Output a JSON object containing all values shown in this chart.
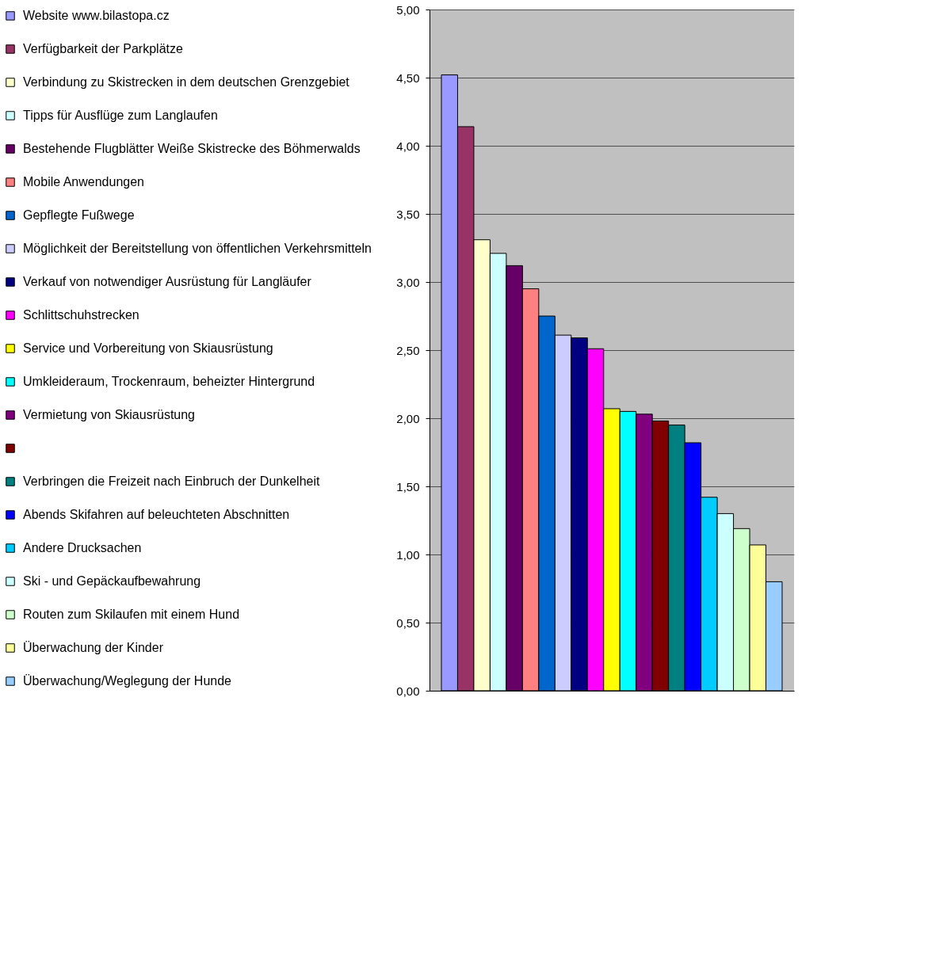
{
  "chart_data": {
    "type": "bar",
    "categories": [
      null
    ],
    "series": [
      {
        "name": "Website www.bilastopa.cz",
        "color": "#9999ff",
        "values": [
          4.52
        ]
      },
      {
        "name": "Verfügbarkeit der Parkplätze",
        "color": "#993366",
        "values": [
          4.14
        ]
      },
      {
        "name": "Verbindung zu Skistrecken in dem deutschen Grenzgebiet",
        "color": "#ffffcc",
        "values": [
          3.31
        ]
      },
      {
        "name": "Tipps für Ausflüge zum Langlaufen",
        "color": "#ccffff",
        "values": [
          3.21
        ]
      },
      {
        "name": "Bestehende Flugblätter Weiße Skistrecke des Böhmerwalds",
        "color": "#660066",
        "values": [
          3.12
        ]
      },
      {
        "name": "Mobile Anwendungen",
        "color": "#ff8080",
        "values": [
          2.95
        ]
      },
      {
        "name": "Gepflegte Fußwege",
        "color": "#0066cc",
        "values": [
          2.75
        ]
      },
      {
        "name": "Möglichkeit der Bereitstellung von öffentlichen Verkehrsmitteln",
        "color": "#ccccff",
        "values": [
          2.61
        ]
      },
      {
        "name": "Verkauf von notwendiger Ausrüstung für Langläufer",
        "color": "#000080",
        "values": [
          2.59
        ]
      },
      {
        "name": "Schlittschuhstrecken",
        "color": "#ff00ff",
        "values": [
          2.51
        ]
      },
      {
        "name": "Service und Vorbereitung von Skiausrüstung",
        "color": "#ffff00",
        "values": [
          2.07
        ]
      },
      {
        "name": "Umkleideraum, Trockenraum, beheizter Hintergrund",
        "color": "#00ffff",
        "values": [
          2.05
        ]
      },
      {
        "name": "Vermietung von Skiausrüstung",
        "color": "#800080",
        "values": [
          2.03
        ]
      },
      {
        "color": "#800000",
        "values": [
          1.98
        ]
      },
      {
        "name": "Verbringen die Freizeit nach Einbruch der Dunkelheit",
        "color": "#008080",
        "values": [
          1.95
        ]
      },
      {
        "name": "Abends Skifahren auf beleuchteten Abschnitten",
        "color": "#0000ff",
        "values": [
          1.82
        ]
      },
      {
        "name": "Andere Drucksachen",
        "color": "#00ccff",
        "values": [
          1.42
        ]
      },
      {
        "name": "Ski - und Gepäckaufbewahrung",
        "color": "#ccffff",
        "values": [
          1.3
        ]
      },
      {
        "name": "Routen zum Skilaufen mit einem Hund",
        "color": "#ccffcc",
        "values": [
          1.19
        ]
      },
      {
        "name": "Überwachung der Kinder",
        "color": "#ffff99",
        "values": [
          1.07
        ]
      },
      {
        "name": "Überwachung/Weglegung der Hunde",
        "color": "#99ccff",
        "values": [
          0.8
        ]
      }
    ],
    "ylim": [
      0,
      5
    ],
    "yticks": [
      {
        "value": 0,
        "label": "0,00"
      },
      {
        "value": 0.5,
        "label": "0,50"
      },
      {
        "value": 1,
        "label": "1,00"
      },
      {
        "value": 1.5,
        "label": "1,50"
      },
      {
        "value": 2,
        "label": "2,00"
      },
      {
        "value": 2.5,
        "label": "2,50"
      },
      {
        "value": 3,
        "label": "3,00"
      },
      {
        "value": 3.5,
        "label": "3,50"
      },
      {
        "value": 4,
        "label": "4,00"
      },
      {
        "value": 4.5,
        "label": "4,50"
      },
      {
        "value": 5,
        "label": "5,00"
      }
    ],
    "grid": "y",
    "legend": "left",
    "tick_labels": "y"
  }
}
